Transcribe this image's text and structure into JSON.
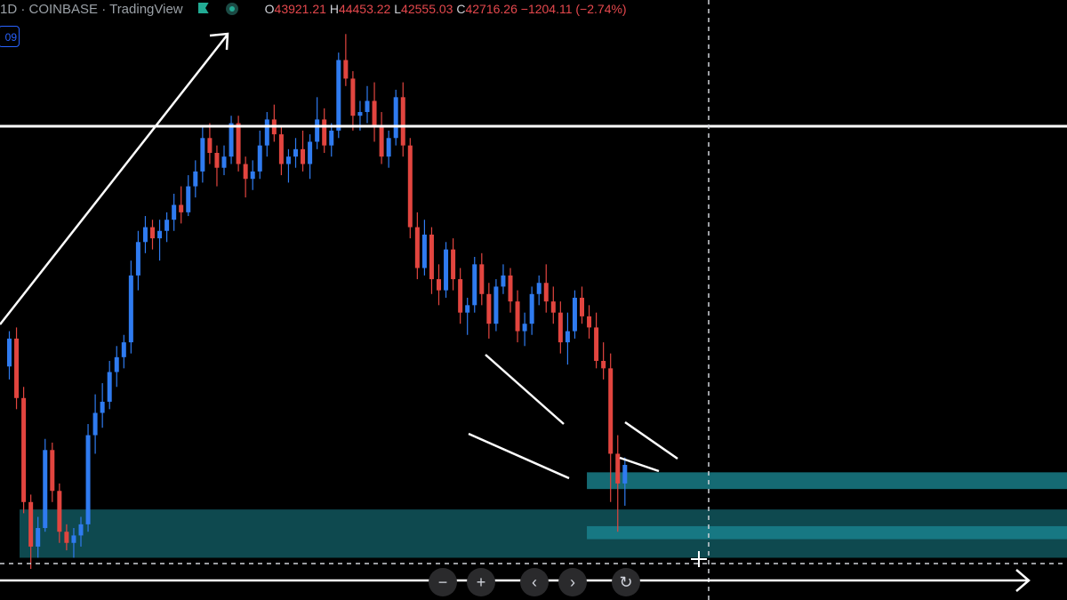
{
  "legend": {
    "symbol": "1D · COINBASE · TradingView",
    "open_label": "O",
    "open": "43921.21",
    "high_label": "H",
    "high": "44453.22",
    "low_label": "L",
    "low": "42555.03",
    "close_label": "C",
    "close": "42716.26",
    "change": "−1204.11 (−2.74%)"
  },
  "tag_text": "09",
  "nav": {
    "zoom_out": "−",
    "zoom_in": "+",
    "scroll_left": "‹",
    "scroll_right": "›",
    "reset": "↻"
  },
  "colors": {
    "up": "#2f7bf0",
    "down": "#e2453f",
    "zone": "#1a8590",
    "line": "#ffffff"
  },
  "chart_data": {
    "type": "candlestick",
    "price_scale": [
      38000,
      52000
    ],
    "horizontal_lines": [
      48600,
      38050
    ],
    "zones": [
      {
        "from_index": 0,
        "to_index": 99,
        "low": 38300,
        "high": 39600
      },
      {
        "from_index": 81,
        "to_index": 99,
        "low": 40150,
        "high": 40600
      },
      {
        "from_index": 81,
        "to_index": 99,
        "low": 38800,
        "high": 39150
      }
    ],
    "candles": [
      [
        43450,
        44400,
        43100,
        44200
      ],
      [
        44200,
        44500,
        42300,
        42600
      ],
      [
        42600,
        42900,
        39500,
        39800
      ],
      [
        39800,
        40000,
        38000,
        38600
      ],
      [
        38600,
        39400,
        38300,
        39100
      ],
      [
        39100,
        41500,
        39000,
        41200
      ],
      [
        41200,
        41400,
        39800,
        40100
      ],
      [
        40100,
        40300,
        38700,
        39000
      ],
      [
        39000,
        39200,
        38500,
        38700
      ],
      [
        38700,
        39100,
        38300,
        38900
      ],
      [
        38900,
        39400,
        38600,
        39200
      ],
      [
        39200,
        41900,
        39000,
        41600
      ],
      [
        41600,
        42700,
        41100,
        42200
      ],
      [
        42200,
        43000,
        41800,
        42500
      ],
      [
        42500,
        43600,
        42300,
        43300
      ],
      [
        43300,
        44000,
        42900,
        43700
      ],
      [
        43700,
        44300,
        43400,
        44100
      ],
      [
        44100,
        46300,
        43800,
        45900
      ],
      [
        45900,
        47100,
        45500,
        46800
      ],
      [
        46800,
        47500,
        46500,
        47200
      ],
      [
        47200,
        47400,
        46600,
        46900
      ],
      [
        46900,
        47400,
        46300,
        47100
      ],
      [
        47100,
        47600,
        46800,
        47400
      ],
      [
        47400,
        48100,
        47100,
        47800
      ],
      [
        47800,
        48300,
        47300,
        47600
      ],
      [
        47600,
        48600,
        47500,
        48300
      ],
      [
        48300,
        49000,
        48000,
        48700
      ],
      [
        48700,
        49900,
        48400,
        49600
      ],
      [
        49600,
        50000,
        48900,
        49200
      ],
      [
        49200,
        49400,
        48300,
        48800
      ],
      [
        48800,
        49400,
        48600,
        49100
      ],
      [
        49100,
        50200,
        48900,
        50000
      ],
      [
        50000,
        50200,
        48700,
        48900
      ],
      [
        48900,
        49100,
        48000,
        48500
      ],
      [
        48500,
        49000,
        48200,
        48700
      ],
      [
        48700,
        49800,
        48500,
        49400
      ],
      [
        49400,
        50300,
        49100,
        50100
      ],
      [
        50100,
        50500,
        49500,
        49700
      ],
      [
        49700,
        49900,
        48600,
        48900
      ],
      [
        48900,
        49300,
        48400,
        49100
      ],
      [
        49100,
        49600,
        48800,
        49300
      ],
      [
        49300,
        49800,
        48700,
        48900
      ],
      [
        48900,
        49700,
        48500,
        49500
      ],
      [
        49500,
        50700,
        49300,
        50100
      ],
      [
        50100,
        50400,
        49200,
        49400
      ],
      [
        49400,
        50000,
        49100,
        49800
      ],
      [
        49800,
        51900,
        49600,
        51700
      ],
      [
        51700,
        52400,
        51000,
        51200
      ],
      [
        51200,
        51400,
        49800,
        50200
      ],
      [
        50200,
        50600,
        49800,
        50300
      ],
      [
        50300,
        51000,
        50000,
        50600
      ],
      [
        50600,
        51100,
        49500,
        49900
      ],
      [
        49900,
        50300,
        48900,
        49100
      ],
      [
        49100,
        49800,
        48800,
        49600
      ],
      [
        49600,
        50900,
        49400,
        50700
      ],
      [
        50700,
        51100,
        49100,
        49400
      ],
      [
        49400,
        49600,
        46900,
        47200
      ],
      [
        47200,
        47600,
        45800,
        46100
      ],
      [
        46100,
        47400,
        45900,
        47000
      ],
      [
        47000,
        47200,
        45400,
        45800
      ],
      [
        45800,
        46200,
        45100,
        45500
      ],
      [
        45500,
        46800,
        45300,
        46600
      ],
      [
        46600,
        46900,
        45500,
        45800
      ],
      [
        45800,
        46100,
        44600,
        44900
      ],
      [
        44900,
        45300,
        44300,
        45100
      ],
      [
        45100,
        46400,
        44900,
        46200
      ],
      [
        46200,
        46500,
        45100,
        45400
      ],
      [
        45400,
        45700,
        44200,
        44600
      ],
      [
        44600,
        45800,
        44400,
        45600
      ],
      [
        45600,
        46200,
        45400,
        45900
      ],
      [
        45900,
        46100,
        44900,
        45200
      ],
      [
        45200,
        45500,
        44100,
        44400
      ],
      [
        44400,
        44900,
        44000,
        44600
      ],
      [
        44600,
        45600,
        44300,
        45400
      ],
      [
        45400,
        45900,
        45100,
        45700
      ],
      [
        45700,
        46200,
        44900,
        45200
      ],
      [
        45200,
        45600,
        44600,
        44900
      ],
      [
        44900,
        45200,
        43800,
        44100
      ],
      [
        44100,
        44900,
        43500,
        44400
      ],
      [
        44400,
        45500,
        44200,
        45300
      ],
      [
        45300,
        45600,
        44600,
        44800
      ],
      [
        44800,
        45100,
        44200,
        44500
      ],
      [
        44500,
        44900,
        43400,
        43600
      ],
      [
        43600,
        44100,
        43100,
        43400
      ],
      [
        43400,
        43800,
        39800,
        41100
      ],
      [
        41100,
        41600,
        39000,
        40300
      ],
      [
        40300,
        41000,
        39700,
        40800
      ]
    ]
  }
}
